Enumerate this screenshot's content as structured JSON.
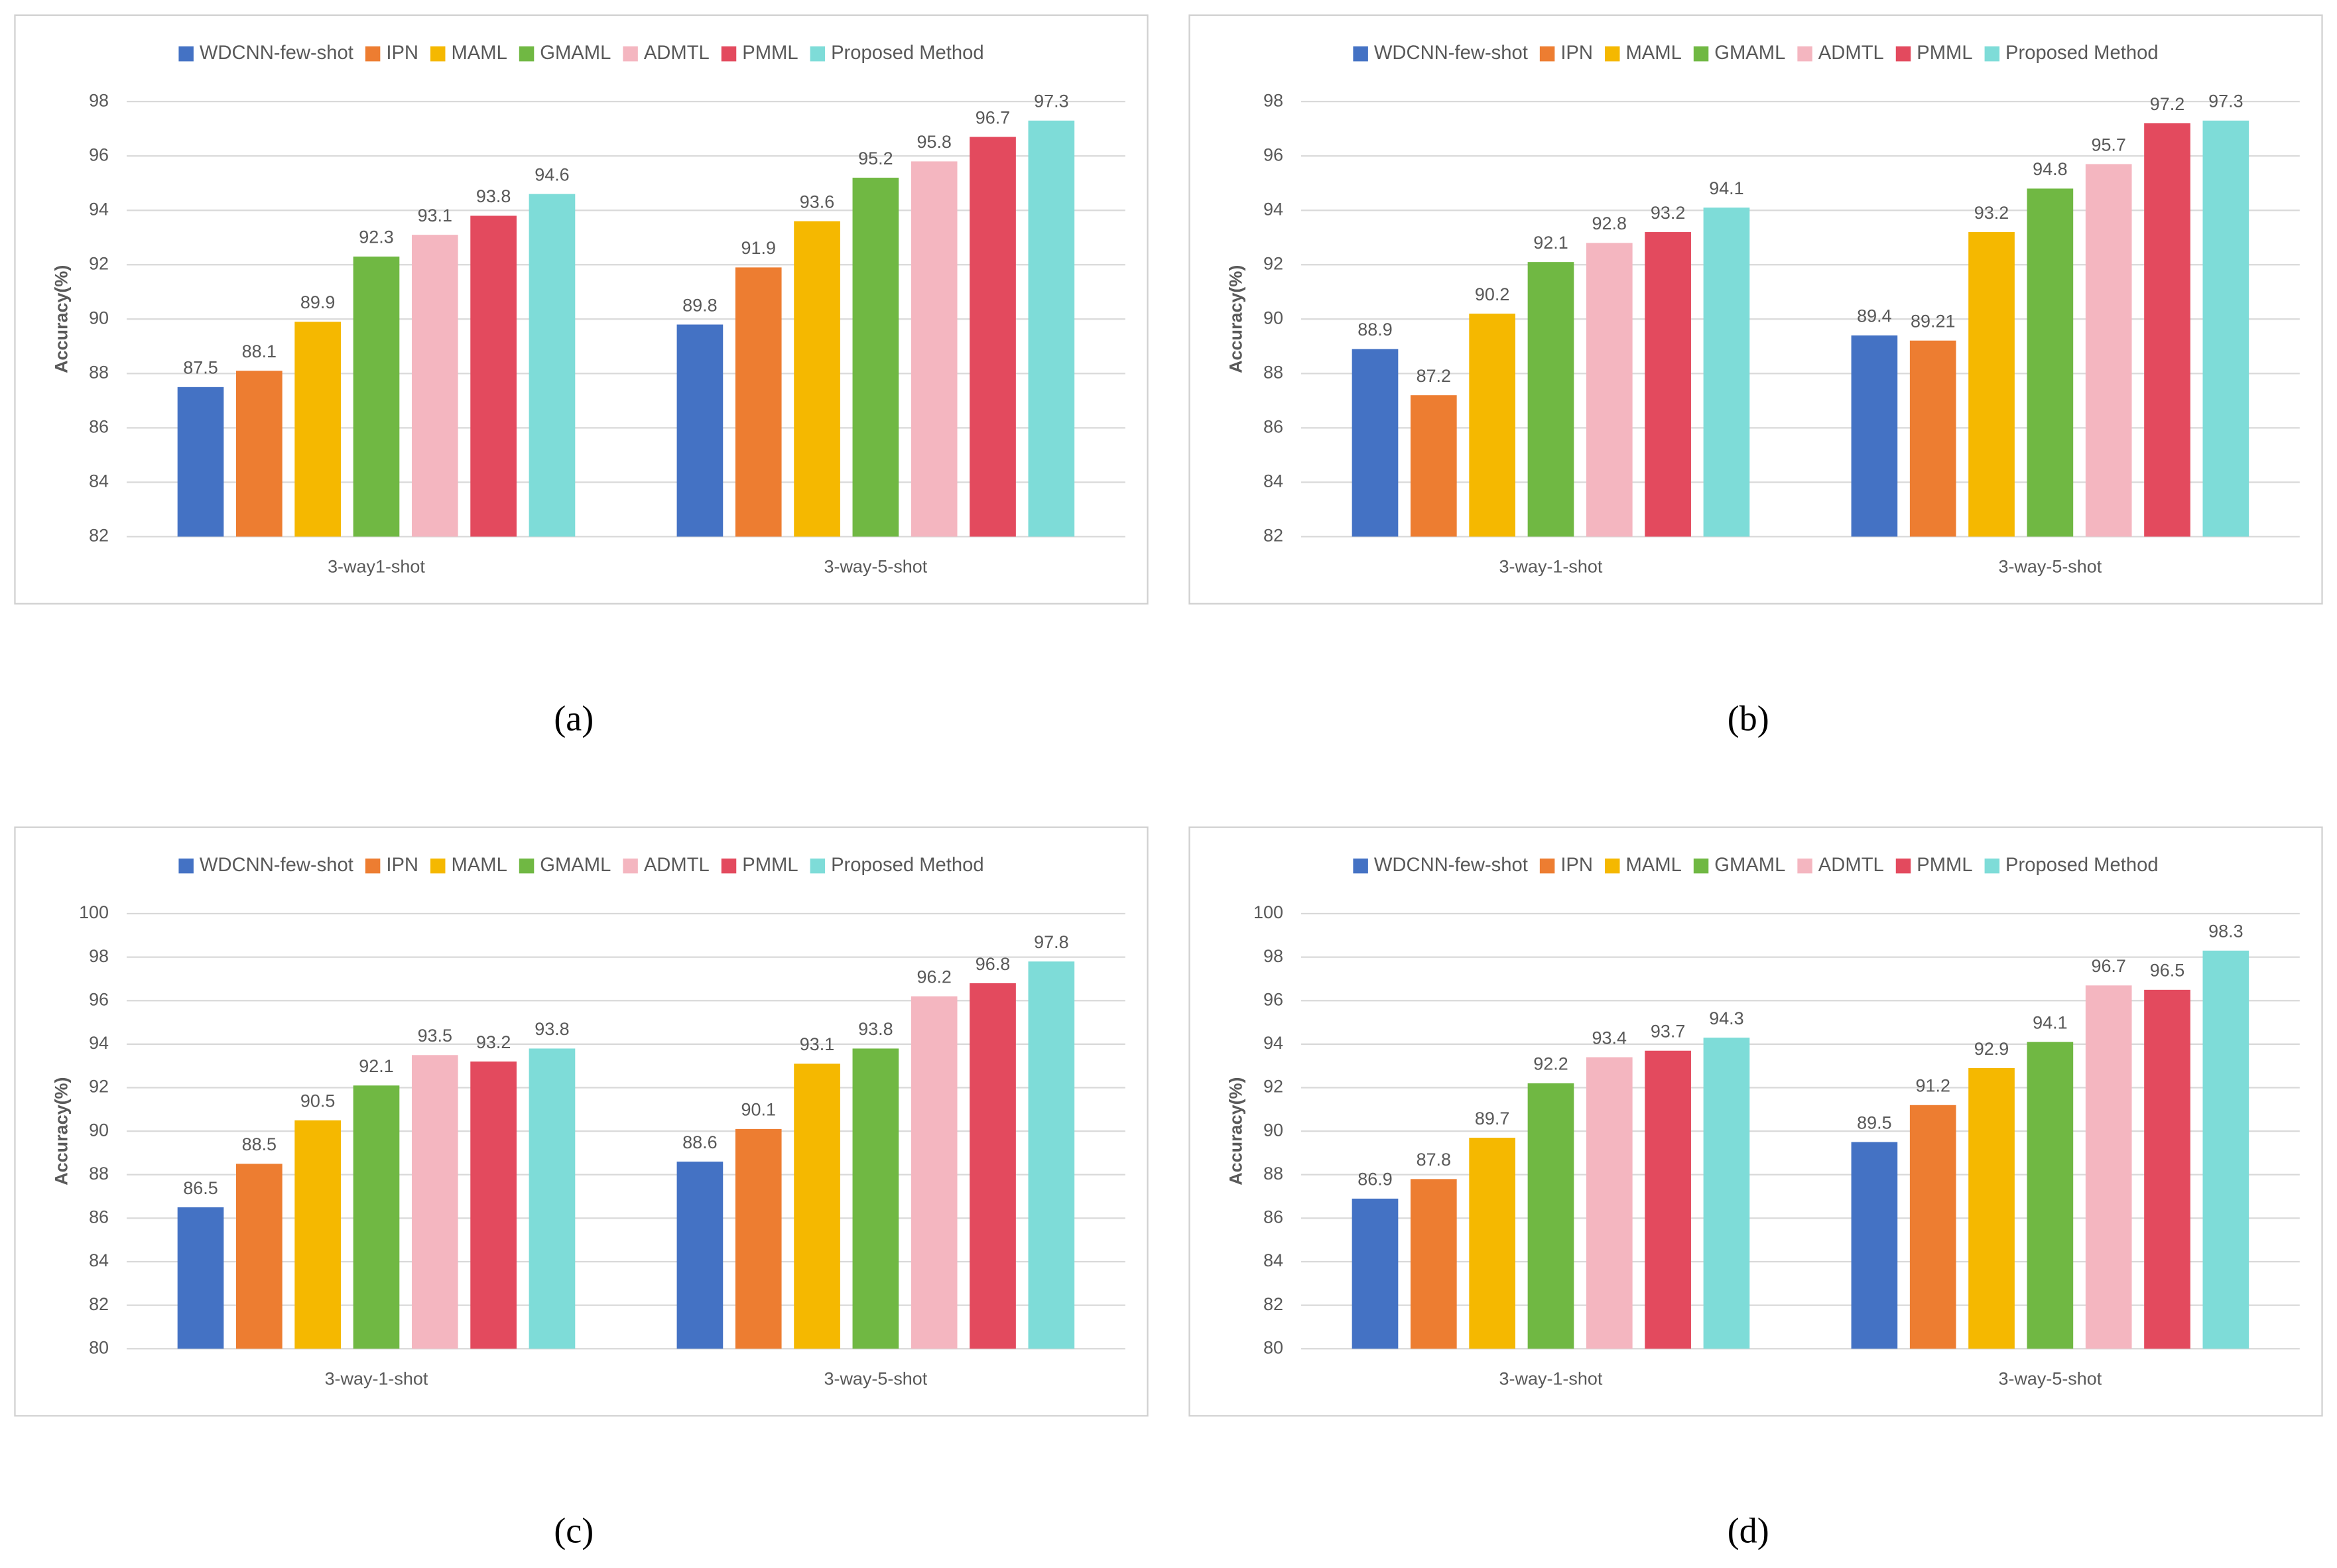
{
  "chart_data": [
    {
      "type": "bar",
      "panel": "(a)",
      "y_label": "Accuracy(%)",
      "categories": [
        "3-way1-shot",
        "3-way-5-shot"
      ],
      "ylim": [
        82,
        98
      ],
      "yticks": [
        82,
        84,
        86,
        88,
        90,
        92,
        94,
        96,
        98
      ],
      "grid": true,
      "legend": "top",
      "series": [
        {
          "name": "WDCNN-few-shot",
          "color": "#4472c4",
          "values": [
            87.5,
            89.8
          ]
        },
        {
          "name": "IPN",
          "color": "#ed7d31",
          "values": [
            88.1,
            91.9
          ]
        },
        {
          "name": "MAML",
          "color": "#f5b800",
          "values": [
            89.9,
            93.6
          ]
        },
        {
          "name": "GMAML",
          "color": "#70b843",
          "values": [
            92.3,
            95.2
          ]
        },
        {
          "name": "ADMTL",
          "color": "#f4b6c0",
          "values": [
            93.1,
            95.8
          ]
        },
        {
          "name": "PMML",
          "color": "#e34a5e",
          "values": [
            93.8,
            96.7
          ]
        },
        {
          "name": "Proposed Method",
          "color": "#7edcd8",
          "values": [
            94.6,
            97.3
          ]
        }
      ]
    },
    {
      "type": "bar",
      "panel": "(b)",
      "y_label": "Accuracy(%)",
      "categories": [
        "3-way-1-shot",
        "3-way-5-shot"
      ],
      "ylim": [
        82,
        98
      ],
      "yticks": [
        82,
        84,
        86,
        88,
        90,
        92,
        94,
        96,
        98
      ],
      "grid": true,
      "legend": "top",
      "series": [
        {
          "name": "WDCNN-few-shot",
          "color": "#4472c4",
          "values": [
            88.9,
            89.4
          ]
        },
        {
          "name": "IPN",
          "color": "#ed7d31",
          "values": [
            87.2,
            89.21
          ]
        },
        {
          "name": "MAML",
          "color": "#f5b800",
          "values": [
            90.2,
            93.2
          ]
        },
        {
          "name": "GMAML",
          "color": "#70b843",
          "values": [
            92.1,
            94.8
          ]
        },
        {
          "name": "ADMTL",
          "color": "#f4b6c0",
          "values": [
            92.8,
            95.7
          ]
        },
        {
          "name": "PMML",
          "color": "#e34a5e",
          "values": [
            93.2,
            97.2
          ]
        },
        {
          "name": "Proposed Method",
          "color": "#7edcd8",
          "values": [
            94.1,
            97.3
          ]
        }
      ]
    },
    {
      "type": "bar",
      "panel": "(c)",
      "y_label": "Accuracy(%)",
      "categories": [
        "3-way-1-shot",
        "3-way-5-shot"
      ],
      "ylim": [
        80,
        100
      ],
      "yticks": [
        80,
        82,
        84,
        86,
        88,
        90,
        92,
        94,
        96,
        98,
        100
      ],
      "grid": true,
      "legend": "top",
      "series": [
        {
          "name": "WDCNN-few-shot",
          "color": "#4472c4",
          "values": [
            86.5,
            88.6
          ]
        },
        {
          "name": "IPN",
          "color": "#ed7d31",
          "values": [
            88.5,
            90.1
          ]
        },
        {
          "name": "MAML",
          "color": "#f5b800",
          "values": [
            90.5,
            93.1
          ]
        },
        {
          "name": "GMAML",
          "color": "#70b843",
          "values": [
            92.1,
            93.8
          ]
        },
        {
          "name": "ADMTL",
          "color": "#f4b6c0",
          "values": [
            93.5,
            96.2
          ]
        },
        {
          "name": "PMML",
          "color": "#e34a5e",
          "values": [
            93.2,
            96.8
          ]
        },
        {
          "name": "Proposed Method",
          "color": "#7edcd8",
          "values": [
            93.8,
            97.8
          ]
        }
      ]
    },
    {
      "type": "bar",
      "panel": "(d)",
      "y_label": "Accuracy(%)",
      "categories": [
        "3-way-1-shot",
        "3-way-5-shot"
      ],
      "ylim": [
        80,
        100
      ],
      "yticks": [
        80,
        82,
        84,
        86,
        88,
        90,
        92,
        94,
        96,
        98,
        100
      ],
      "grid": true,
      "legend": "top",
      "series": [
        {
          "name": "WDCNN-few-shot",
          "color": "#4472c4",
          "values": [
            86.9,
            89.5
          ]
        },
        {
          "name": "IPN",
          "color": "#ed7d31",
          "values": [
            87.8,
            91.2
          ]
        },
        {
          "name": "MAML",
          "color": "#f5b800",
          "values": [
            89.7,
            92.9
          ]
        },
        {
          "name": "GMAML",
          "color": "#70b843",
          "values": [
            92.2,
            94.1
          ]
        },
        {
          "name": "ADMTL",
          "color": "#f4b6c0",
          "values": [
            93.4,
            96.7
          ]
        },
        {
          "name": "PMML",
          "color": "#e34a5e",
          "values": [
            93.7,
            96.5
          ]
        },
        {
          "name": "Proposed Method",
          "color": "#7edcd8",
          "values": [
            94.3,
            98.3
          ]
        }
      ]
    }
  ]
}
